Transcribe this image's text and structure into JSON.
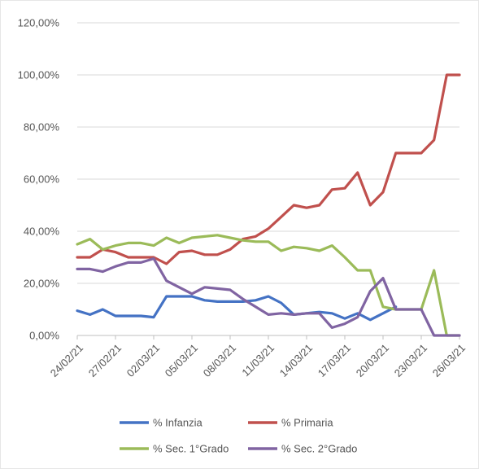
{
  "chart_data": {
    "type": "line",
    "title": "",
    "xlabel": "",
    "ylabel": "",
    "ylim": [
      0,
      120
    ],
    "y_ticks": [
      0,
      20,
      40,
      60,
      80,
      100,
      120
    ],
    "y_tick_labels": [
      "0,00%",
      "20,00%",
      "40,00%",
      "60,00%",
      "80,00%",
      "100,00%",
      "120,00%"
    ],
    "x": [
      "24/02/21",
      "25/02/21",
      "26/02/21",
      "27/02/21",
      "28/02/21",
      "01/03/21",
      "02/03/21",
      "03/03/21",
      "04/03/21",
      "05/03/21",
      "06/03/21",
      "07/03/21",
      "08/03/21",
      "09/03/21",
      "10/03/21",
      "11/03/21",
      "12/03/21",
      "13/03/21",
      "14/03/21",
      "15/03/21",
      "16/03/21",
      "17/03/21",
      "18/03/21",
      "19/03/21",
      "20/03/21",
      "21/03/21",
      "22/03/21",
      "23/03/21",
      "24/03/21",
      "25/03/21",
      "26/03/21"
    ],
    "x_tick_labels": [
      "24/02/21",
      "27/02/21",
      "02/03/21",
      "05/03/21",
      "08/03/21",
      "11/03/21",
      "14/03/21",
      "17/03/21",
      "20/03/21",
      "23/03/21",
      "26/03/21"
    ],
    "grid": true,
    "legend_position": "bottom",
    "series": [
      {
        "name": "% Infanzia",
        "color": "#4472c4",
        "values": [
          9.5,
          8,
          10,
          7.5,
          7.5,
          7.5,
          7,
          15,
          15,
          15,
          13.5,
          13,
          13,
          13,
          13.5,
          15,
          12.5,
          8,
          8.5,
          9,
          8.5,
          6.5,
          8.5,
          6,
          8.5,
          11,
          null,
          null,
          null,
          null,
          null
        ]
      },
      {
        "name": "% Primaria",
        "color": "#c0504d",
        "values": [
          30,
          30,
          33,
          32,
          30,
          30,
          30,
          27.5,
          32,
          32.5,
          31,
          31,
          33,
          37,
          38,
          41,
          45.5,
          50,
          49,
          50,
          56,
          56.5,
          62.5,
          50,
          55,
          70,
          70,
          70,
          75,
          100,
          100
        ]
      },
      {
        "name": "% Sec. 1°Grado",
        "color": "#9bbb59",
        "values": [
          35,
          37,
          33,
          34.5,
          35.5,
          35.5,
          34.5,
          37.5,
          35.5,
          37.5,
          38,
          38.5,
          37.5,
          36.5,
          36,
          36,
          32.5,
          34,
          33.5,
          32.5,
          34.5,
          30,
          25,
          25,
          11,
          10,
          10,
          10,
          25,
          0,
          0
        ]
      },
      {
        "name": "% Sec. 2°Grado",
        "color": "#8064a2",
        "values": [
          25.5,
          25.5,
          24.5,
          26.5,
          28,
          28,
          29.5,
          21,
          18.5,
          16,
          18.5,
          18,
          17.5,
          14,
          11,
          8,
          8.5,
          8,
          8.5,
          8.5,
          3,
          4.5,
          7,
          17,
          22,
          10,
          10,
          10,
          0,
          0,
          0
        ]
      }
    ]
  }
}
